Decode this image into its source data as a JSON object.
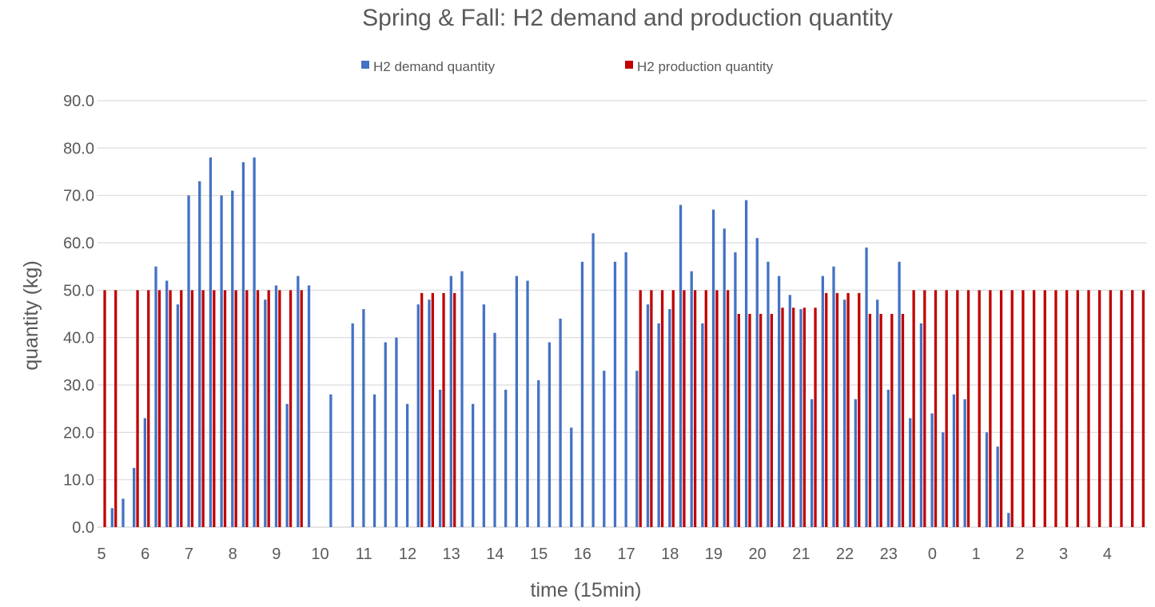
{
  "chart_data": {
    "type": "bar",
    "title": "Spring & Fall: H2 demand and production quantity",
    "xlabel": "time (15min)",
    "ylabel": "quantity (kg)",
    "ylim": [
      0,
      90
    ],
    "y_ticks": [
      "0.0",
      "10.0",
      "20.0",
      "30.0",
      "40.0",
      "50.0",
      "60.0",
      "70.0",
      "80.0",
      "90.0"
    ],
    "grid": true,
    "legend_position": "top",
    "interval_minutes": 15,
    "hour_labels": [
      "5",
      "6",
      "7",
      "8",
      "9",
      "10",
      "11",
      "12",
      "13",
      "14",
      "15",
      "16",
      "17",
      "18",
      "19",
      "20",
      "21",
      "22",
      "23",
      "0",
      "1",
      "2",
      "3",
      "4"
    ],
    "series": [
      {
        "name": "H2 demand quantity",
        "color": "#4472c4",
        "values": [
          0,
          4,
          6,
          12.5,
          23,
          55,
          52,
          47,
          70,
          73,
          78,
          70,
          71,
          77,
          78,
          48,
          51,
          26,
          53,
          51,
          0,
          28,
          0,
          43,
          46,
          28,
          39,
          40,
          26,
          47,
          48,
          29,
          53,
          54,
          26,
          47,
          41,
          29,
          53,
          52,
          31,
          39,
          44,
          21,
          56,
          62,
          33,
          56,
          58,
          33,
          47,
          43,
          46,
          68,
          54,
          43,
          67,
          63,
          58,
          69,
          61,
          56,
          53,
          49,
          46,
          27,
          53,
          55,
          48,
          27,
          59,
          48,
          29,
          56,
          23,
          43,
          24,
          20,
          28,
          27,
          0,
          20,
          17,
          3,
          0,
          0,
          0,
          0,
          0,
          0,
          0,
          0,
          0,
          0,
          0,
          0
        ]
      },
      {
        "name": "H2 production quantity",
        "color": "#c00000",
        "values": [
          50,
          50,
          0,
          50,
          50,
          50,
          50,
          50,
          50,
          50,
          50,
          50,
          50,
          50,
          50,
          50,
          50,
          50,
          50,
          0,
          0,
          0,
          0,
          0,
          0,
          0,
          0,
          0,
          0,
          49.4,
          49.4,
          49.4,
          49.4,
          0,
          0,
          0,
          0,
          0,
          0,
          0,
          0,
          0,
          0,
          0,
          0,
          0,
          0,
          0,
          0,
          50,
          50,
          50,
          50,
          50,
          50,
          50,
          50,
          50,
          45,
          45,
          45,
          45,
          46.3,
          46.3,
          46.3,
          46.3,
          49.4,
          49.4,
          49.4,
          49.4,
          45,
          45,
          45,
          45,
          50,
          50,
          50,
          50,
          50,
          50,
          50,
          50,
          50,
          50,
          50,
          50,
          50,
          50,
          50,
          50,
          50,
          50,
          50,
          50,
          50,
          50
        ]
      }
    ]
  }
}
